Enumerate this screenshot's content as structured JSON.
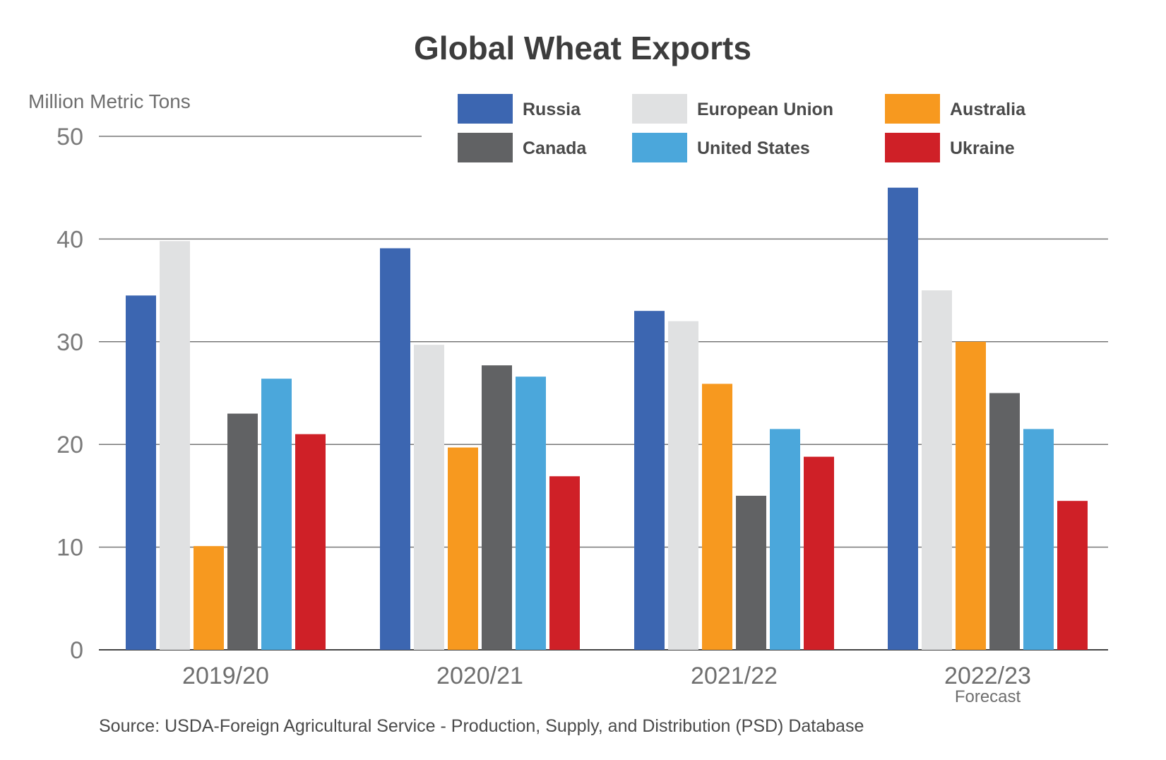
{
  "chart_data": {
    "type": "bar",
    "title": "Global Wheat Exports",
    "ylabel": "Million Metric Tons",
    "xlabel": "",
    "ylim": [
      0,
      50
    ],
    "yticks": [
      0,
      10,
      20,
      30,
      40,
      50
    ],
    "grid": true,
    "legend_position": "top-right",
    "categories": [
      "2019/20",
      "2020/21",
      "2021/22",
      "2022/23"
    ],
    "category_notes": [
      "",
      "",
      "",
      "Forecast"
    ],
    "series": [
      {
        "name": "Russia",
        "color": "#3c66b1",
        "values": [
          34.5,
          39.1,
          33.0,
          45.0
        ]
      },
      {
        "name": "European Union",
        "color": "#e0e1e2",
        "values": [
          39.8,
          29.7,
          32.0,
          35.0
        ]
      },
      {
        "name": "Australia",
        "color": "#f7991f",
        "values": [
          10.1,
          19.7,
          25.9,
          30.0
        ]
      },
      {
        "name": "Canada",
        "color": "#616264",
        "values": [
          23.0,
          27.7,
          15.0,
          25.0
        ]
      },
      {
        "name": "United States",
        "color": "#4ba7db",
        "values": [
          26.4,
          26.6,
          21.5,
          21.5
        ]
      },
      {
        "name": "Ukraine",
        "color": "#cf2027",
        "values": [
          21.0,
          16.9,
          18.8,
          14.5
        ]
      }
    ],
    "source": "Source: USDA-Foreign Agricultural Service - Production, Supply, and Distribution (PSD) Database"
  }
}
